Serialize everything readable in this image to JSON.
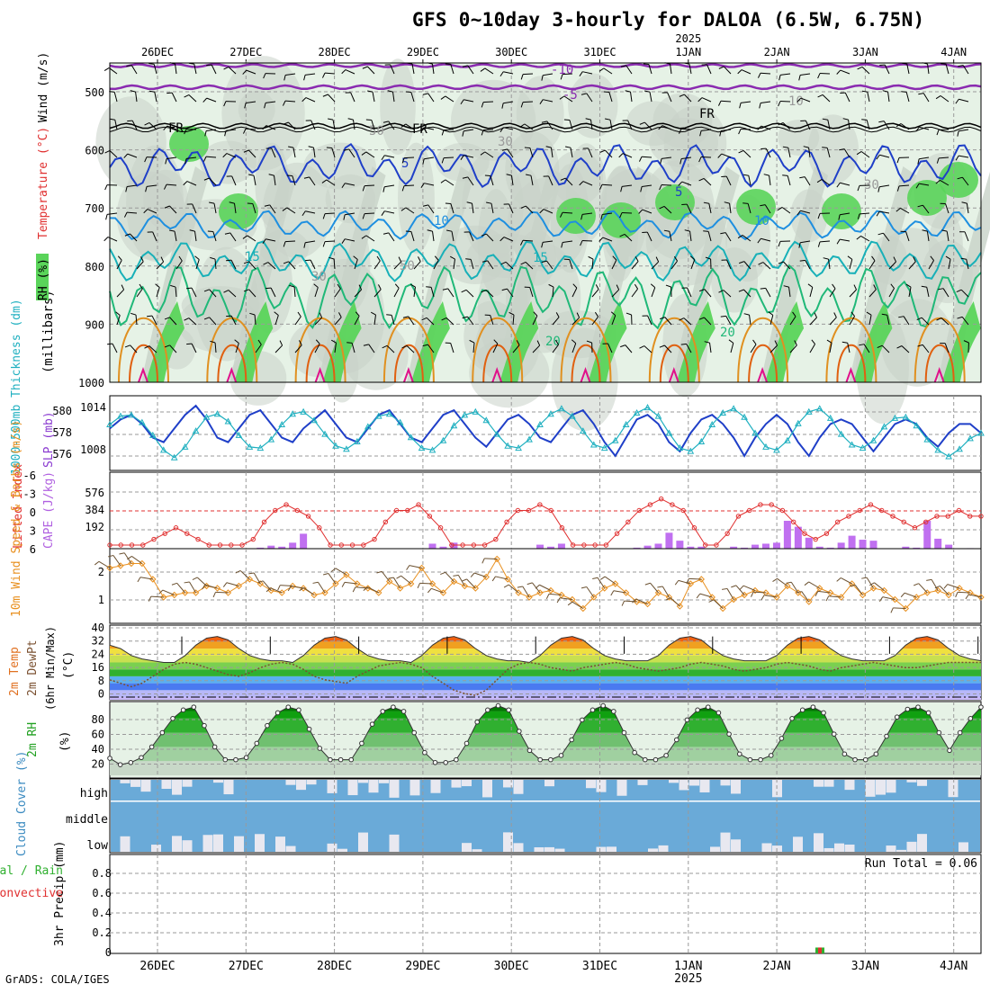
{
  "title": "GFS 0~10day 3-hourly for DALOA (6.5W, 6.75N)",
  "credit": "GrADS: COLA/IGES",
  "dates": [
    "26DEC",
    "27DEC",
    "28DEC",
    "29DEC",
    "30DEC",
    "31DEC",
    "1JAN",
    "2JAN",
    "3JAN",
    "4JAN"
  ],
  "year_label": "2025",
  "year_under_date": "1JAN",
  "colors": {
    "rh_green": "#5ad45a",
    "rh_light": "#e6f2e6",
    "rh_gray": "#c8d2c8",
    "temp_neg10": "#8a2bb0",
    "temp_fr": "#000000",
    "temp_5": "#1f3fc8",
    "temp_10": "#1e8fe0",
    "temp_15": "#18b0b8",
    "temp_20": "#20b878",
    "temp_25": "#e09020",
    "temp_30": "#e06010",
    "temp_35": "#e0108a",
    "slp": "#1f3fc8",
    "thickness": "#20b0c0",
    "cape_bar": "#c070f0",
    "lifted_index": "#e03030",
    "wind_speed": "#e89020",
    "cloud_bg": "#6aaad8",
    "cloud_block": "#e8e8f0",
    "precip_total": "#30b030",
    "precip_conv": "#e03030"
  },
  "panels": {
    "upper_air": {
      "ylabel": "(millibars)",
      "legend_words": [
        "RH (%)",
        "Temperature (°C)",
        "Wind (m/s)"
      ],
      "levels": [
        "500",
        "600",
        "700",
        "800",
        "900",
        "1000"
      ],
      "contour_labels": [
        "-10",
        "-5",
        "FR",
        "FR",
        "FR",
        "5",
        "5",
        "10",
        "10",
        "15",
        "15",
        "20",
        "20",
        "30",
        "30",
        "50",
        "50",
        "30",
        "10"
      ]
    },
    "slp_thickness": {
      "legend_thickness": "1000-500mb Thickness (dm)",
      "legend_slp": "SLP (mb)",
      "thickness_ticks": [
        "580",
        "578",
        "576"
      ],
      "slp_ticks": [
        "1014",
        "1008"
      ]
    },
    "cape_li": {
      "legend_li": "Lifted Index",
      "legend_cape": "CAPE (J/kg)",
      "li_ticks": [
        "-6",
        "-3",
        "0",
        "3",
        "6"
      ],
      "cape_ticks": [
        "576",
        "384",
        "192"
      ]
    },
    "wind10m": {
      "legend": "10m Wind Speed & Barbs (m/s)",
      "ticks": [
        "2",
        "1"
      ]
    },
    "temp2m": {
      "legend_temp": "2m Temp",
      "legend_dewpt": "2m DewPt",
      "legend_minmax": "(6hr Min/Max)",
      "unit": "(°C)",
      "ticks": [
        "40",
        "32",
        "24",
        "16",
        "8",
        "0"
      ]
    },
    "rh2m": {
      "legend": "2m RH",
      "unit": "(%)",
      "ticks": [
        "80",
        "60",
        "40",
        "20"
      ]
    },
    "cloud": {
      "legend": "Cloud Cover (%)",
      "layers": [
        "high",
        "middle",
        "low"
      ]
    },
    "precip": {
      "legend_total": "Total / Rain",
      "legend_conv": "Convective",
      "ylabel": "3hr Precip (mm)",
      "run_total": "Run Total = 0.06",
      "ticks": [
        "0.8",
        "0.6",
        "0.4",
        "0.2",
        "0"
      ]
    }
  },
  "chart_data": [
    {
      "type": "line",
      "title": "SLP (mb) / 1000-500mb Thickness (dm)",
      "x": "3-hourly steps from 25DEC 12Z to 4JAN 06Z",
      "series": [
        {
          "name": "SLP (mb)",
          "values": [
            1010,
            1012,
            1013,
            1011,
            1008,
            1007,
            1010,
            1013,
            1015,
            1012,
            1008,
            1007,
            1010,
            1013,
            1014,
            1011,
            1008,
            1007,
            1010,
            1012,
            1014,
            1011,
            1008,
            1007,
            1010,
            1013,
            1014,
            1011,
            1008,
            1007,
            1010,
            1013,
            1014,
            1011,
            1008,
            1006,
            1009,
            1012,
            1013,
            1011,
            1008,
            1007,
            1010,
            1013,
            1014,
            1011,
            1007,
            1004,
            1008,
            1012,
            1013,
            1011,
            1007,
            1005,
            1009,
            1012,
            1013,
            1011,
            1008,
            1004,
            1008,
            1011,
            1013,
            1011,
            1007,
            1004,
            1008,
            1011,
            1012,
            1011,
            1008,
            1005,
            1008,
            1011,
            1012,
            1011,
            1008,
            1006,
            1009,
            1011,
            1011,
            1009
          ]
        },
        {
          "name": "1000-500mb Thickness (dm)",
          "values": [
            578.8,
            579.6,
            579.7,
            579.0,
            577.8,
            576.4,
            575.7,
            576.7,
            578.2,
            579.5,
            579.8,
            579.1,
            577.8,
            576.7,
            576.6,
            577.4,
            578.8,
            579.8,
            580.0,
            579.2,
            577.9,
            576.8,
            576.5,
            577.2,
            578.6,
            579.6,
            579.8,
            579.0,
            577.6,
            576.6,
            576.4,
            577.3,
            578.7,
            579.7,
            580.0,
            579.2,
            577.9,
            576.8,
            576.6,
            577.4,
            578.8,
            579.8,
            580.3,
            579.6,
            578.2,
            576.9,
            576.6,
            577.3,
            578.8,
            579.9,
            580.4,
            579.6,
            578.0,
            576.6,
            576.3,
            577.2,
            578.8,
            579.9,
            580.3,
            579.5,
            578.0,
            576.7,
            576.4,
            577.3,
            578.9,
            580.0,
            580.3,
            579.4,
            577.9,
            576.9,
            576.6,
            577.3,
            578.6,
            579.4,
            579.5,
            578.7,
            577.4,
            576.4,
            575.8,
            576.5,
            577.5,
            578.0
          ]
        }
      ],
      "ylim_slp": [
        1002,
        1016
      ],
      "ylim_thickness": [
        575,
        581
      ]
    },
    {
      "type": "bar",
      "title": "CAPE (J/kg) and Lifted Index",
      "series": [
        {
          "name": "CAPE (J/kg)",
          "values": [
            0,
            0,
            0,
            0,
            0,
            0,
            0,
            0,
            0,
            0,
            0,
            0,
            0,
            0,
            10,
            30,
            20,
            60,
            150,
            0,
            0,
            0,
            0,
            0,
            0,
            0,
            0,
            0,
            0,
            0,
            50,
            20,
            60,
            0,
            0,
            0,
            0,
            0,
            0,
            0,
            40,
            20,
            50,
            0,
            0,
            0,
            0,
            0,
            0,
            10,
            30,
            50,
            160,
            80,
            20,
            20,
            0,
            0,
            20,
            10,
            40,
            50,
            60,
            280,
            220,
            110,
            20,
            10,
            60,
            130,
            90,
            80,
            0,
            0,
            20,
            10,
            280,
            100,
            40,
            0,
            5,
            0,
            0,
            0,
            0,
            0,
            0,
            0,
            0,
            0,
            0,
            0,
            0,
            0,
            0,
            0,
            0,
            0,
            0,
            0,
            0,
            0,
            0,
            0,
            0,
            0,
            0,
            0,
            0,
            0,
            0,
            0,
            0,
            0,
            0,
            0,
            0,
            0,
            0,
            0
          ]
        },
        {
          "name": "Lifted Index",
          "values": [
            6,
            6,
            6,
            6,
            5,
            4,
            3,
            4,
            5,
            6,
            6,
            6,
            6,
            5,
            2,
            0,
            -1,
            0,
            1,
            3,
            6,
            6,
            6,
            6,
            5,
            2,
            0,
            0,
            -1,
            1,
            3,
            6,
            6,
            6,
            6,
            5,
            2,
            0,
            0,
            -1,
            0,
            3,
            6,
            6,
            6,
            6,
            4,
            2,
            0,
            -1,
            -2,
            -1,
            0,
            3,
            6,
            6,
            4,
            1,
            0,
            -1,
            -1,
            0,
            2,
            4,
            5,
            4,
            2,
            1,
            0,
            -1,
            0,
            1,
            2,
            3,
            2,
            1,
            1,
            0,
            1,
            1
          ]
        }
      ],
      "ylim_cape": [
        0,
        768
      ],
      "ylim_li": [
        6,
        -6
      ]
    },
    {
      "type": "line",
      "title": "10m Wind Speed (m/s)",
      "series": [
        {
          "name": "10m Wind Speed",
          "values": [
            2.3,
            2.4,
            2.5,
            2.5,
            1.8,
            1.0,
            1.1,
            1.2,
            1.2,
            1.5,
            1.4,
            1.2,
            1.5,
            1.8,
            1.6,
            1.3,
            1.2,
            1.5,
            1.4,
            1.1,
            1.2,
            1.6,
            2.0,
            1.6,
            1.4,
            1.2,
            1.7,
            1.4,
            1.6,
            2.3,
            1.6,
            1.2,
            1.7,
            1.5,
            1.4,
            1.9,
            2.7,
            1.8,
            1.2,
            1.0,
            1.2,
            1.3,
            1.1,
            0.9,
            0.5,
            1.0,
            1.4,
            1.6,
            1.2,
            0.8,
            0.7,
            1.2,
            1.0,
            0.6,
            1.6,
            1.8,
            1.0,
            0.5,
            0.9,
            1.1,
            1.3,
            1.2,
            1.0,
            1.5,
            1.2,
            0.8,
            1.4,
            1.2,
            1.0,
            1.6,
            1.1,
            1.4,
            1.3,
            0.9,
            0.5,
            1.0,
            1.2,
            1.3,
            1.1,
            1.4,
            1.2,
            1.0
          ]
        }
      ],
      "ylim": [
        0,
        3
      ]
    },
    {
      "type": "area",
      "title": "2m Temp / 2m DewPt (°C)",
      "series": [
        {
          "name": "2m Temp",
          "values": [
            30,
            28,
            24,
            22,
            21,
            20,
            20,
            24,
            30,
            34,
            35,
            33,
            28,
            24,
            22,
            21,
            21,
            20,
            24,
            30,
            34,
            35,
            33,
            28,
            24,
            22,
            21,
            21,
            20,
            24,
            30,
            34,
            35,
            33,
            28,
            24,
            22,
            21,
            21,
            20,
            24,
            30,
            34,
            35,
            33,
            28,
            24,
            22,
            21,
            21,
            21,
            24,
            30,
            34,
            35,
            33,
            28,
            24,
            22,
            21,
            21,
            21,
            24,
            30,
            34,
            35,
            33,
            28,
            24,
            22,
            21,
            21,
            21,
            24,
            30,
            34,
            35,
            33,
            28,
            24,
            22,
            21
          ]
        },
        {
          "name": "2m DewPt",
          "values": [
            10,
            8,
            6,
            8,
            12,
            16,
            19,
            20,
            19,
            17,
            15,
            13,
            12,
            14,
            17,
            19,
            20,
            19,
            16,
            12,
            10,
            9,
            8,
            12,
            15,
            18,
            19,
            20,
            19,
            17,
            12,
            8,
            4,
            2,
            1,
            4,
            10,
            16,
            19,
            20,
            19,
            17,
            16,
            15,
            17,
            18,
            19,
            20,
            19,
            17,
            16,
            15,
            16,
            17,
            19,
            20,
            19,
            18,
            16,
            15,
            16,
            17,
            19,
            20,
            19,
            18,
            16,
            15,
            17,
            18,
            19,
            20,
            19,
            18,
            17,
            17,
            18,
            19,
            20,
            20,
            20,
            20
          ]
        }
      ],
      "ylim": [
        0,
        40
      ]
    },
    {
      "type": "area",
      "title": "2m RH (%)",
      "series": [
        {
          "name": "2m RH",
          "values": [
            24,
            15,
            18,
            25,
            40,
            60,
            80,
            92,
            96,
            70,
            40,
            22,
            22,
            25,
            45,
            70,
            88,
            96,
            92,
            65,
            38,
            22,
            22,
            22,
            45,
            72,
            90,
            96,
            90,
            60,
            32,
            18,
            18,
            22,
            45,
            75,
            92,
            98,
            92,
            62,
            35,
            22,
            22,
            28,
            50,
            78,
            92,
            98,
            90,
            60,
            32,
            22,
            22,
            28,
            50,
            78,
            92,
            96,
            88,
            58,
            30,
            22,
            22,
            28,
            52,
            80,
            92,
            96,
            88,
            58,
            30,
            22,
            22,
            30,
            55,
            82,
            93,
            96,
            88,
            60,
            35,
            60,
            80,
            96
          ]
        }
      ],
      "ylim": [
        0,
        100
      ]
    },
    {
      "type": "bar",
      "title": "3hr Precip (mm)",
      "series": [
        {
          "name": "Total / Rain",
          "values": [
            0.06
          ]
        },
        {
          "name": "Convective",
          "values": [
            0.06
          ]
        }
      ],
      "ylim": [
        0,
        1
      ]
    }
  ]
}
